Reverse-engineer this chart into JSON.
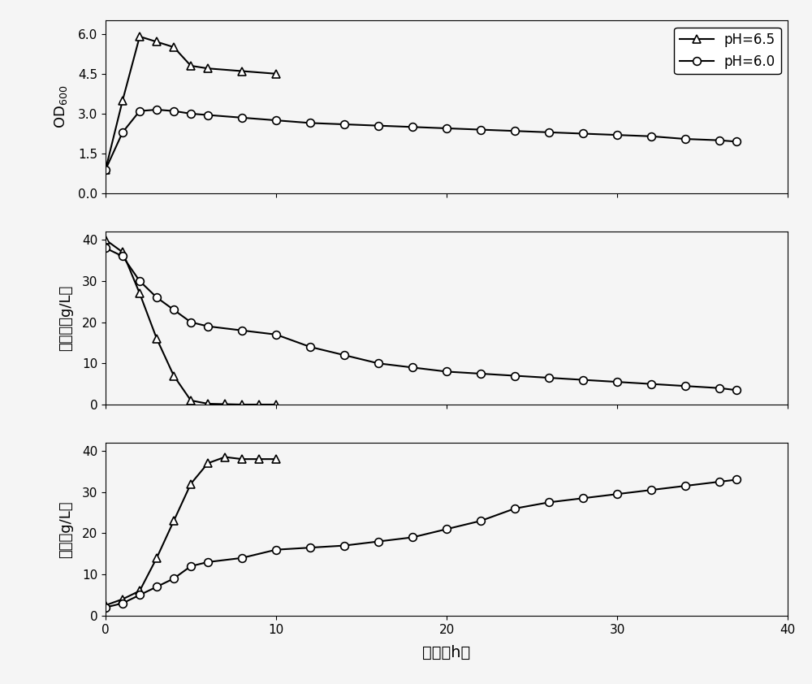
{
  "xlabel": "时间（h）",
  "legend_ph65": "pH=6.5",
  "legend_ph60": "pH=6.0",
  "ph65_od_x": [
    0,
    1,
    2,
    3,
    4,
    5,
    6,
    8,
    10
  ],
  "ph65_od_y": [
    0.9,
    3.5,
    5.9,
    5.7,
    5.5,
    4.8,
    4.7,
    4.6,
    4.5
  ],
  "ph60_od_x": [
    0,
    1,
    2,
    3,
    4,
    5,
    6,
    8,
    10,
    12,
    14,
    16,
    18,
    20,
    22,
    24,
    26,
    28,
    30,
    32,
    34,
    36,
    37
  ],
  "ph60_od_y": [
    0.9,
    2.3,
    3.1,
    3.15,
    3.1,
    3.0,
    2.95,
    2.85,
    2.75,
    2.65,
    2.6,
    2.55,
    2.5,
    2.45,
    2.4,
    2.35,
    2.3,
    2.25,
    2.2,
    2.15,
    2.05,
    2.0,
    1.95
  ],
  "ph65_gluc_x": [
    0,
    1,
    2,
    3,
    4,
    5,
    6,
    7,
    8,
    9,
    10
  ],
  "ph65_gluc_y": [
    40,
    37,
    27,
    16,
    7,
    1,
    0.2,
    0.1,
    0,
    0,
    0
  ],
  "ph60_gluc_x": [
    0,
    1,
    2,
    3,
    4,
    5,
    6,
    8,
    10,
    12,
    14,
    16,
    18,
    20,
    22,
    24,
    26,
    28,
    30,
    32,
    34,
    36,
    37
  ],
  "ph60_gluc_y": [
    38,
    36,
    30,
    26,
    23,
    20,
    19,
    18,
    17,
    14,
    12,
    10,
    9,
    8,
    7.5,
    7,
    6.5,
    6,
    5.5,
    5,
    4.5,
    4,
    3.5
  ],
  "ph65_lact_x": [
    0,
    1,
    2,
    3,
    4,
    5,
    6,
    7,
    8,
    9,
    10
  ],
  "ph65_lact_y": [
    2.5,
    4,
    6,
    14,
    23,
    32,
    37,
    38.5,
    38,
    38,
    38
  ],
  "ph60_lact_x": [
    0,
    1,
    2,
    3,
    4,
    5,
    6,
    8,
    10,
    12,
    14,
    16,
    18,
    20,
    22,
    24,
    26,
    28,
    30,
    32,
    34,
    36,
    37
  ],
  "ph60_lact_y": [
    2,
    3,
    5,
    7,
    9,
    12,
    13,
    14,
    16,
    16.5,
    17,
    18,
    19,
    21,
    23,
    26,
    27.5,
    28.5,
    29.5,
    30.5,
    31.5,
    32.5,
    33
  ],
  "od_ylim": [
    0,
    6.5
  ],
  "od_yticks": [
    0.0,
    1.5,
    3.0,
    4.5,
    6.0
  ],
  "gluc_ylim": [
    0,
    42
  ],
  "gluc_yticks": [
    0,
    10,
    20,
    30,
    40
  ],
  "lact_ylim": [
    0,
    42
  ],
  "lact_yticks": [
    0,
    10,
    20,
    30,
    40
  ],
  "xlim": [
    0,
    40
  ],
  "xticks": [
    0,
    10,
    20,
    30,
    40
  ],
  "line_color": "#000000",
  "bg_color": "#f5f5f5",
  "marker_triangle": "^",
  "marker_circle": "o",
  "marker_size": 7,
  "line_width": 1.5,
  "fontsize_label": 13,
  "fontsize_tick": 11,
  "fontsize_legend": 12
}
